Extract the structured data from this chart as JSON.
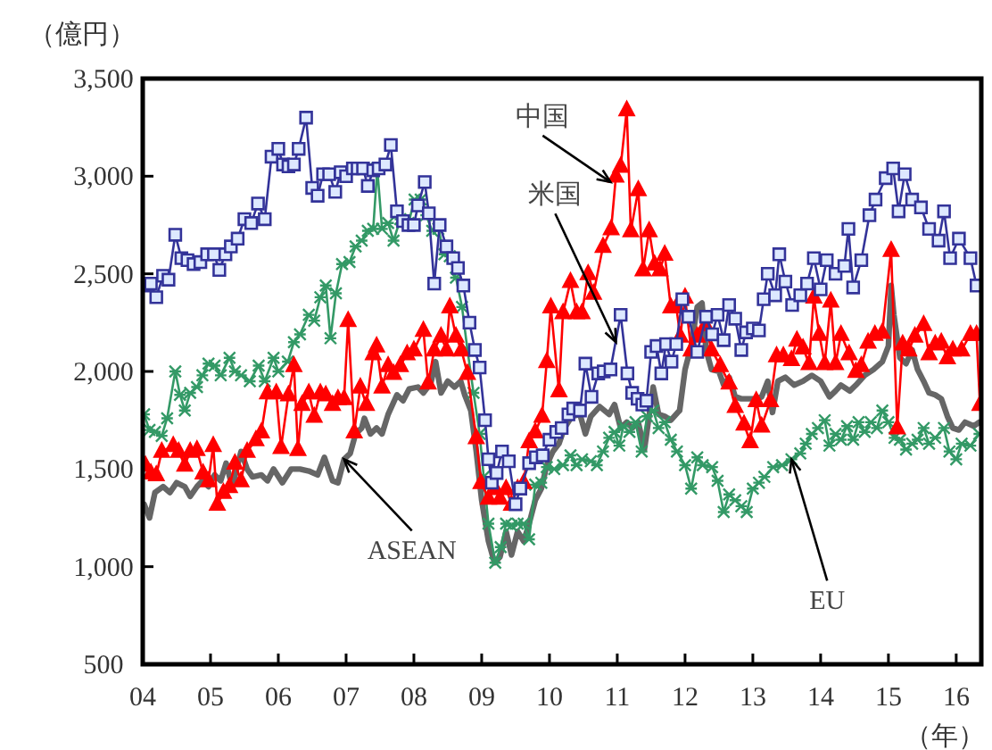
{
  "chart_data": {
    "type": "line",
    "ylabel": "（億円）",
    "xlabel": "（年）",
    "xlim": [
      2004,
      2016.37
    ],
    "ylim": [
      500,
      3500
    ],
    "xticks": [
      {
        "value": 2004,
        "label": "04"
      },
      {
        "value": 2005,
        "label": "05"
      },
      {
        "value": 2006,
        "label": "06"
      },
      {
        "value": 2007,
        "label": "07"
      },
      {
        "value": 2008,
        "label": "08"
      },
      {
        "value": 2009,
        "label": "09"
      },
      {
        "value": 2010,
        "label": "10"
      },
      {
        "value": 2011,
        "label": "11"
      },
      {
        "value": 2012,
        "label": "12"
      },
      {
        "value": 2013,
        "label": "13"
      },
      {
        "value": 2014,
        "label": "14"
      },
      {
        "value": 2015,
        "label": "15"
      },
      {
        "value": 2016,
        "label": "16"
      }
    ],
    "yticks": [
      500,
      {
        "value": 1000,
        "label": "1,000"
      },
      {
        "value": 1500,
        "label": "1,500"
      },
      {
        "value": 2000,
        "label": "2,000"
      },
      {
        "value": 2500,
        "label": "2,500"
      },
      {
        "value": 3000,
        "label": "3,000"
      },
      {
        "value": 3500,
        "label": "3,500"
      }
    ],
    "grid": false,
    "series": [
      {
        "color": "#666666",
        "marker": "none",
        "x": [
          2004.02,
          2004.1,
          2004.18,
          2004.3,
          2004.4,
          2004.5,
          2004.62,
          2004.7,
          2004.8,
          2004.88,
          2004.97,
          2005.06,
          2005.15,
          2005.23,
          2005.32,
          2005.45,
          2005.54,
          2005.62,
          2005.75,
          2005.84,
          2005.93,
          2006.06,
          2006.19,
          2006.32,
          2006.45,
          2006.58,
          2006.68,
          2006.8,
          2006.88,
          2006.97,
          2007.06,
          2007.14,
          2007.23,
          2007.27,
          2007.36,
          2007.45,
          2007.53,
          2007.62,
          2007.75,
          2007.84,
          2007.93,
          2008.06,
          2008.14,
          2008.25,
          2008.32,
          2008.4,
          2008.5,
          2008.6,
          2008.69,
          2008.75,
          2008.84,
          2008.92,
          2009.0,
          2009.1,
          2009.19,
          2009.27,
          2009.36,
          2009.44,
          2009.53,
          2009.62,
          2009.7,
          2009.79,
          2009.88,
          2009.96,
          2010.05,
          2010.14,
          2010.22,
          2010.33,
          2010.45,
          2010.53,
          2010.61,
          2010.74,
          2010.88,
          2010.96,
          2011.05,
          2011.14,
          2011.22,
          2011.31,
          2011.4,
          2011.53,
          2011.61,
          2011.7,
          2011.79,
          2011.92,
          2012.0,
          2012.09,
          2012.18,
          2012.25,
          2012.31,
          2012.39,
          2012.5,
          2012.57,
          2012.65,
          2012.74,
          2012.83,
          2012.91,
          2013.05,
          2013.13,
          2013.22,
          2013.29,
          2013.37,
          2013.48,
          2013.61,
          2013.74,
          2013.87,
          2014.0,
          2014.13,
          2014.22,
          2014.3,
          2014.43,
          2014.52,
          2014.65,
          2014.78,
          2014.91,
          2015.0,
          2015.04,
          2015.08,
          2015.17,
          2015.26,
          2015.35,
          2015.43,
          2015.52,
          2015.6,
          2015.69,
          2015.78,
          2015.87,
          2015.95,
          2016.04,
          2016.13,
          2016.26,
          2016.34
        ],
        "values": [
          1320,
          1250,
          1380,
          1410,
          1380,
          1430,
          1410,
          1360,
          1410,
          1440,
          1410,
          1470,
          1440,
          1530,
          1410,
          1590,
          1500,
          1460,
          1470,
          1440,
          1500,
          1430,
          1500,
          1500,
          1490,
          1470,
          1560,
          1440,
          1430,
          1550,
          1580,
          1680,
          1710,
          1760,
          1680,
          1710,
          1680,
          1780,
          1880,
          1850,
          1910,
          1920,
          1890,
          1940,
          2050,
          1890,
          1950,
          1920,
          1950,
          1880,
          1800,
          1590,
          1340,
          1130,
          1020,
          1050,
          1180,
          1060,
          1180,
          1130,
          1220,
          1340,
          1400,
          1520,
          1590,
          1630,
          1710,
          1770,
          1780,
          1680,
          1770,
          1820,
          1780,
          1830,
          1710,
          1740,
          1710,
          1740,
          1600,
          1920,
          1780,
          1770,
          1750,
          1800,
          2010,
          2130,
          2330,
          2350,
          2110,
          2010,
          2000,
          1930,
          1970,
          1870,
          1860,
          1860,
          1860,
          1870,
          1950,
          1790,
          1950,
          1970,
          1930,
          1950,
          1980,
          1950,
          1870,
          1900,
          1930,
          1900,
          1930,
          1980,
          2010,
          2050,
          2130,
          2440,
          2290,
          2070,
          2040,
          2110,
          2010,
          1950,
          1890,
          1880,
          1860,
          1770,
          1710,
          1700,
          1740,
          1720,
          1740
        ]
      },
      {
        "color": "#339966",
        "marker": "cross",
        "x": [
          2004.02,
          2004.1,
          2004.18,
          2004.28,
          2004.36,
          2004.48,
          2004.55,
          2004.62,
          2004.7,
          2004.8,
          2004.88,
          2004.97,
          2005.06,
          2005.15,
          2005.28,
          2005.36,
          2005.45,
          2005.58,
          2005.71,
          2005.8,
          2005.93,
          2006.0,
          2006.14,
          2006.23,
          2006.32,
          2006.45,
          2006.53,
          2006.62,
          2006.7,
          2006.77,
          2006.85,
          2006.94,
          2007.05,
          2007.14,
          2007.23,
          2007.32,
          2007.4,
          2007.46,
          2007.53,
          2007.62,
          2007.7,
          2007.8,
          2007.92,
          2008.01,
          2008.1,
          2008.18,
          2008.27,
          2008.36,
          2008.45,
          2008.53,
          2008.62,
          2008.71,
          2008.79,
          2008.88,
          2008.97,
          2009.03,
          2009.1,
          2009.2,
          2009.28,
          2009.36,
          2009.44,
          2009.53,
          2009.62,
          2009.7,
          2009.79,
          2009.88,
          2009.96,
          2010.07,
          2010.2,
          2010.31,
          2010.4,
          2010.48,
          2010.61,
          2010.7,
          2010.79,
          2010.88,
          2010.96,
          2011.03,
          2011.09,
          2011.18,
          2011.27,
          2011.36,
          2011.44,
          2011.53,
          2011.61,
          2011.7,
          2011.79,
          2011.88,
          2012.0,
          2012.09,
          2012.18,
          2012.26,
          2012.4,
          2012.48,
          2012.57,
          2012.65,
          2012.74,
          2012.83,
          2012.91,
          2013.0,
          2013.09,
          2013.17,
          2013.3,
          2013.43,
          2013.57,
          2013.7,
          2013.78,
          2013.87,
          2013.96,
          2014.06,
          2014.13,
          2014.22,
          2014.3,
          2014.39,
          2014.48,
          2014.56,
          2014.65,
          2014.74,
          2014.83,
          2014.91,
          2015.0,
          2015.09,
          2015.17,
          2015.26,
          2015.35,
          2015.43,
          2015.52,
          2015.6,
          2015.69,
          2015.82,
          2015.9,
          2016.0,
          2016.08,
          2016.21,
          2016.34
        ],
        "values": [
          1780,
          1700,
          1690,
          1670,
          1760,
          2000,
          1880,
          1800,
          1890,
          1920,
          1980,
          2040,
          2030,
          1980,
          2070,
          2000,
          1980,
          1950,
          2030,
          1950,
          2070,
          2000,
          2050,
          2150,
          2190,
          2290,
          2260,
          2380,
          2440,
          2170,
          2400,
          2550,
          2560,
          2640,
          2670,
          2720,
          2730,
          3040,
          2730,
          2760,
          2670,
          2780,
          2760,
          2880,
          2880,
          2800,
          2720,
          2730,
          2600,
          2590,
          2480,
          2330,
          2110,
          1890,
          1680,
          1460,
          1220,
          1020,
          1100,
          1220,
          1210,
          1220,
          1220,
          1140,
          1420,
          1430,
          1510,
          1500,
          1520,
          1570,
          1520,
          1550,
          1540,
          1520,
          1590,
          1660,
          1690,
          1620,
          1720,
          1690,
          1740,
          1590,
          1770,
          1800,
          1710,
          1740,
          1650,
          1590,
          1520,
          1400,
          1560,
          1520,
          1510,
          1440,
          1280,
          1370,
          1340,
          1310,
          1280,
          1400,
          1430,
          1460,
          1510,
          1520,
          1550,
          1580,
          1630,
          1680,
          1710,
          1750,
          1620,
          1680,
          1650,
          1720,
          1650,
          1740,
          1690,
          1740,
          1710,
          1800,
          1740,
          1660,
          1650,
          1600,
          1630,
          1650,
          1710,
          1630,
          1660,
          1710,
          1590,
          1550,
          1630,
          1620,
          1680
        ]
      },
      {
        "color": "#ff0000",
        "marker": "triangle",
        "x": [
          2004.04,
          2004.12,
          2004.2,
          2004.28,
          2004.45,
          2004.53,
          2004.62,
          2004.7,
          2004.8,
          2004.89,
          2004.97,
          2005.04,
          2005.1,
          2005.19,
          2005.28,
          2005.36,
          2005.45,
          2005.54,
          2005.67,
          2005.75,
          2005.84,
          2005.97,
          2006.04,
          2006.15,
          2006.23,
          2006.29,
          2006.35,
          2006.45,
          2006.53,
          2006.62,
          2006.7,
          2006.8,
          2006.88,
          2006.97,
          2007.03,
          2007.12,
          2007.21,
          2007.3,
          2007.4,
          2007.45,
          2007.53,
          2007.62,
          2007.7,
          2007.8,
          2007.9,
          2008.0,
          2008.14,
          2008.21,
          2008.3,
          2008.4,
          2008.48,
          2008.53,
          2008.62,
          2008.7,
          2008.79,
          2008.92,
          2008.99,
          2009.1,
          2009.2,
          2009.27,
          2009.36,
          2009.44,
          2009.53,
          2009.62,
          2009.7,
          2009.79,
          2009.89,
          2009.96,
          2010.02,
          2010.14,
          2010.2,
          2010.31,
          2010.4,
          2010.48,
          2010.57,
          2010.65,
          2010.79,
          2010.91,
          2010.98,
          2011.05,
          2011.14,
          2011.2,
          2011.31,
          2011.38,
          2011.47,
          2011.55,
          2011.63,
          2011.7,
          2011.79,
          2011.87,
          2011.93,
          2012.0,
          2012.09,
          2012.18,
          2012.3,
          2012.39,
          2012.52,
          2012.65,
          2012.74,
          2012.87,
          2012.96,
          2013.05,
          2013.13,
          2013.26,
          2013.35,
          2013.45,
          2013.57,
          2013.65,
          2013.74,
          2013.83,
          2013.9,
          2013.98,
          2014.06,
          2014.15,
          2014.22,
          2014.3,
          2014.42,
          2014.52,
          2014.6,
          2014.7,
          2014.8,
          2014.91,
          2015.04,
          2015.13,
          2015.21,
          2015.3,
          2015.39,
          2015.52,
          2015.6,
          2015.69,
          2015.78,
          2015.87,
          2015.95,
          2016.08,
          2016.21,
          2016.3,
          2016.35
        ],
        "values": [
          1520,
          1480,
          1470,
          1590,
          1620,
          1590,
          1520,
          1590,
          1600,
          1480,
          1440,
          1620,
          1320,
          1380,
          1410,
          1530,
          1440,
          1590,
          1650,
          1690,
          1890,
          1890,
          1610,
          1880,
          2030,
          1600,
          1830,
          1890,
          1770,
          1890,
          1880,
          1830,
          1860,
          1860,
          2260,
          1690,
          1920,
          1830,
          2090,
          2130,
          1920,
          2030,
          1990,
          2030,
          2090,
          2110,
          2210,
          1940,
          2110,
          2180,
          2110,
          2330,
          2180,
          2110,
          1990,
          1660,
          1430,
          1350,
          1400,
          1350,
          1400,
          1320,
          1400,
          1430,
          1640,
          1690,
          1770,
          2050,
          2330,
          1900,
          2300,
          2460,
          2300,
          2300,
          2500,
          2400,
          2640,
          2730,
          3000,
          3050,
          3340,
          2720,
          2930,
          2520,
          2720,
          2550,
          2520,
          2600,
          2330,
          2330,
          2180,
          2380,
          2110,
          2180,
          2240,
          2110,
          2030,
          1940,
          1820,
          1730,
          1640,
          1850,
          1720,
          1850,
          2080,
          2080,
          2060,
          2160,
          2120,
          2040,
          2380,
          2190,
          2040,
          2360,
          2040,
          2190,
          2090,
          2000,
          2030,
          2150,
          2190,
          2200,
          2620,
          1710,
          2140,
          2110,
          2180,
          2240,
          2090,
          2140,
          2150,
          2070,
          2110,
          2110,
          2190,
          2190,
          1830
        ]
      },
      {
        "color": "#333399",
        "marker": "square",
        "x": [
          2004.04,
          2004.12,
          2004.2,
          2004.3,
          2004.38,
          2004.48,
          2004.57,
          2004.66,
          2004.75,
          2004.85,
          2004.95,
          2005.05,
          2005.13,
          2005.22,
          2005.3,
          2005.4,
          2005.5,
          2005.6,
          2005.7,
          2005.8,
          2005.9,
          2006.0,
          2006.07,
          2006.15,
          2006.23,
          2006.3,
          2006.41,
          2006.5,
          2006.58,
          2006.66,
          2006.75,
          2006.84,
          2006.92,
          2007.0,
          2007.1,
          2007.17,
          2007.25,
          2007.32,
          2007.4,
          2007.48,
          2007.58,
          2007.66,
          2007.75,
          2007.84,
          2007.92,
          2008.0,
          2008.06,
          2008.16,
          2008.22,
          2008.3,
          2008.38,
          2008.48,
          2008.58,
          2008.65,
          2008.73,
          2008.82,
          2008.9,
          2008.97,
          2009.05,
          2009.1,
          2009.15,
          2009.22,
          2009.3,
          2009.4,
          2009.5,
          2009.57,
          2009.7,
          2009.8,
          2009.9,
          2010.0,
          2010.1,
          2010.18,
          2010.28,
          2010.35,
          2010.45,
          2010.53,
          2010.62,
          2010.72,
          2010.8,
          2010.9,
          2011.05,
          2011.15,
          2011.22,
          2011.3,
          2011.37,
          2011.43,
          2011.5,
          2011.58,
          2011.65,
          2011.72,
          2011.8,
          2011.87,
          2011.96,
          2012.05,
          2012.18,
          2012.31,
          2012.4,
          2012.48,
          2012.57,
          2012.65,
          2012.74,
          2012.83,
          2012.9,
          2013.0,
          2013.09,
          2013.16,
          2013.22,
          2013.33,
          2013.39,
          2013.48,
          2013.58,
          2013.7,
          2013.8,
          2013.9,
          2014.0,
          2014.09,
          2014.22,
          2014.35,
          2014.41,
          2014.48,
          2014.6,
          2014.72,
          2014.81,
          2014.96,
          2015.07,
          2015.15,
          2015.24,
          2015.35,
          2015.48,
          2015.6,
          2015.74,
          2015.82,
          2015.91,
          2016.04,
          2016.21,
          2016.3
        ],
        "values": [
          2440,
          2450,
          2380,
          2490,
          2470,
          2700,
          2580,
          2570,
          2550,
          2560,
          2600,
          2600,
          2520,
          2600,
          2640,
          2680,
          2780,
          2760,
          2860,
          2780,
          3100,
          3140,
          3060,
          3050,
          3060,
          3140,
          3300,
          2940,
          2900,
          3010,
          3010,
          2920,
          3020,
          3000,
          3040,
          3040,
          3040,
          2950,
          3030,
          3040,
          3060,
          3160,
          2820,
          2770,
          2750,
          2750,
          2850,
          2970,
          2810,
          2450,
          2750,
          2640,
          2580,
          2530,
          2440,
          2250,
          2110,
          2020,
          1750,
          1550,
          1430,
          1480,
          1590,
          1540,
          1320,
          1400,
          1530,
          1560,
          1570,
          1650,
          1690,
          1710,
          1780,
          1810,
          1800,
          2040,
          1870,
          1990,
          2000,
          2010,
          2290,
          1990,
          1890,
          1860,
          1830,
          1850,
          2100,
          2130,
          1990,
          2140,
          2050,
          2140,
          2370,
          2280,
          2100,
          2280,
          2190,
          2290,
          2160,
          2340,
          2270,
          2110,
          2200,
          2220,
          2210,
          2370,
          2500,
          2390,
          2600,
          2460,
          2340,
          2390,
          2450,
          2580,
          2420,
          2570,
          2500,
          2540,
          2730,
          2430,
          2570,
          2800,
          2880,
          2990,
          3040,
          2820,
          3010,
          2880,
          2840,
          2730,
          2670,
          2820,
          2580,
          2680,
          2580,
          2440
        ]
      }
    ],
    "annotations": [
      {
        "text": "中国",
        "x": 2010.9,
        "y": 2970
      },
      {
        "text": "米国",
        "x": 2010.98,
        "y": 2150
      },
      {
        "text": "ASEAN",
        "x": 2006.97,
        "y": 1550
      },
      {
        "text": "EU",
        "x": 2013.57,
        "y": 1550
      }
    ]
  }
}
